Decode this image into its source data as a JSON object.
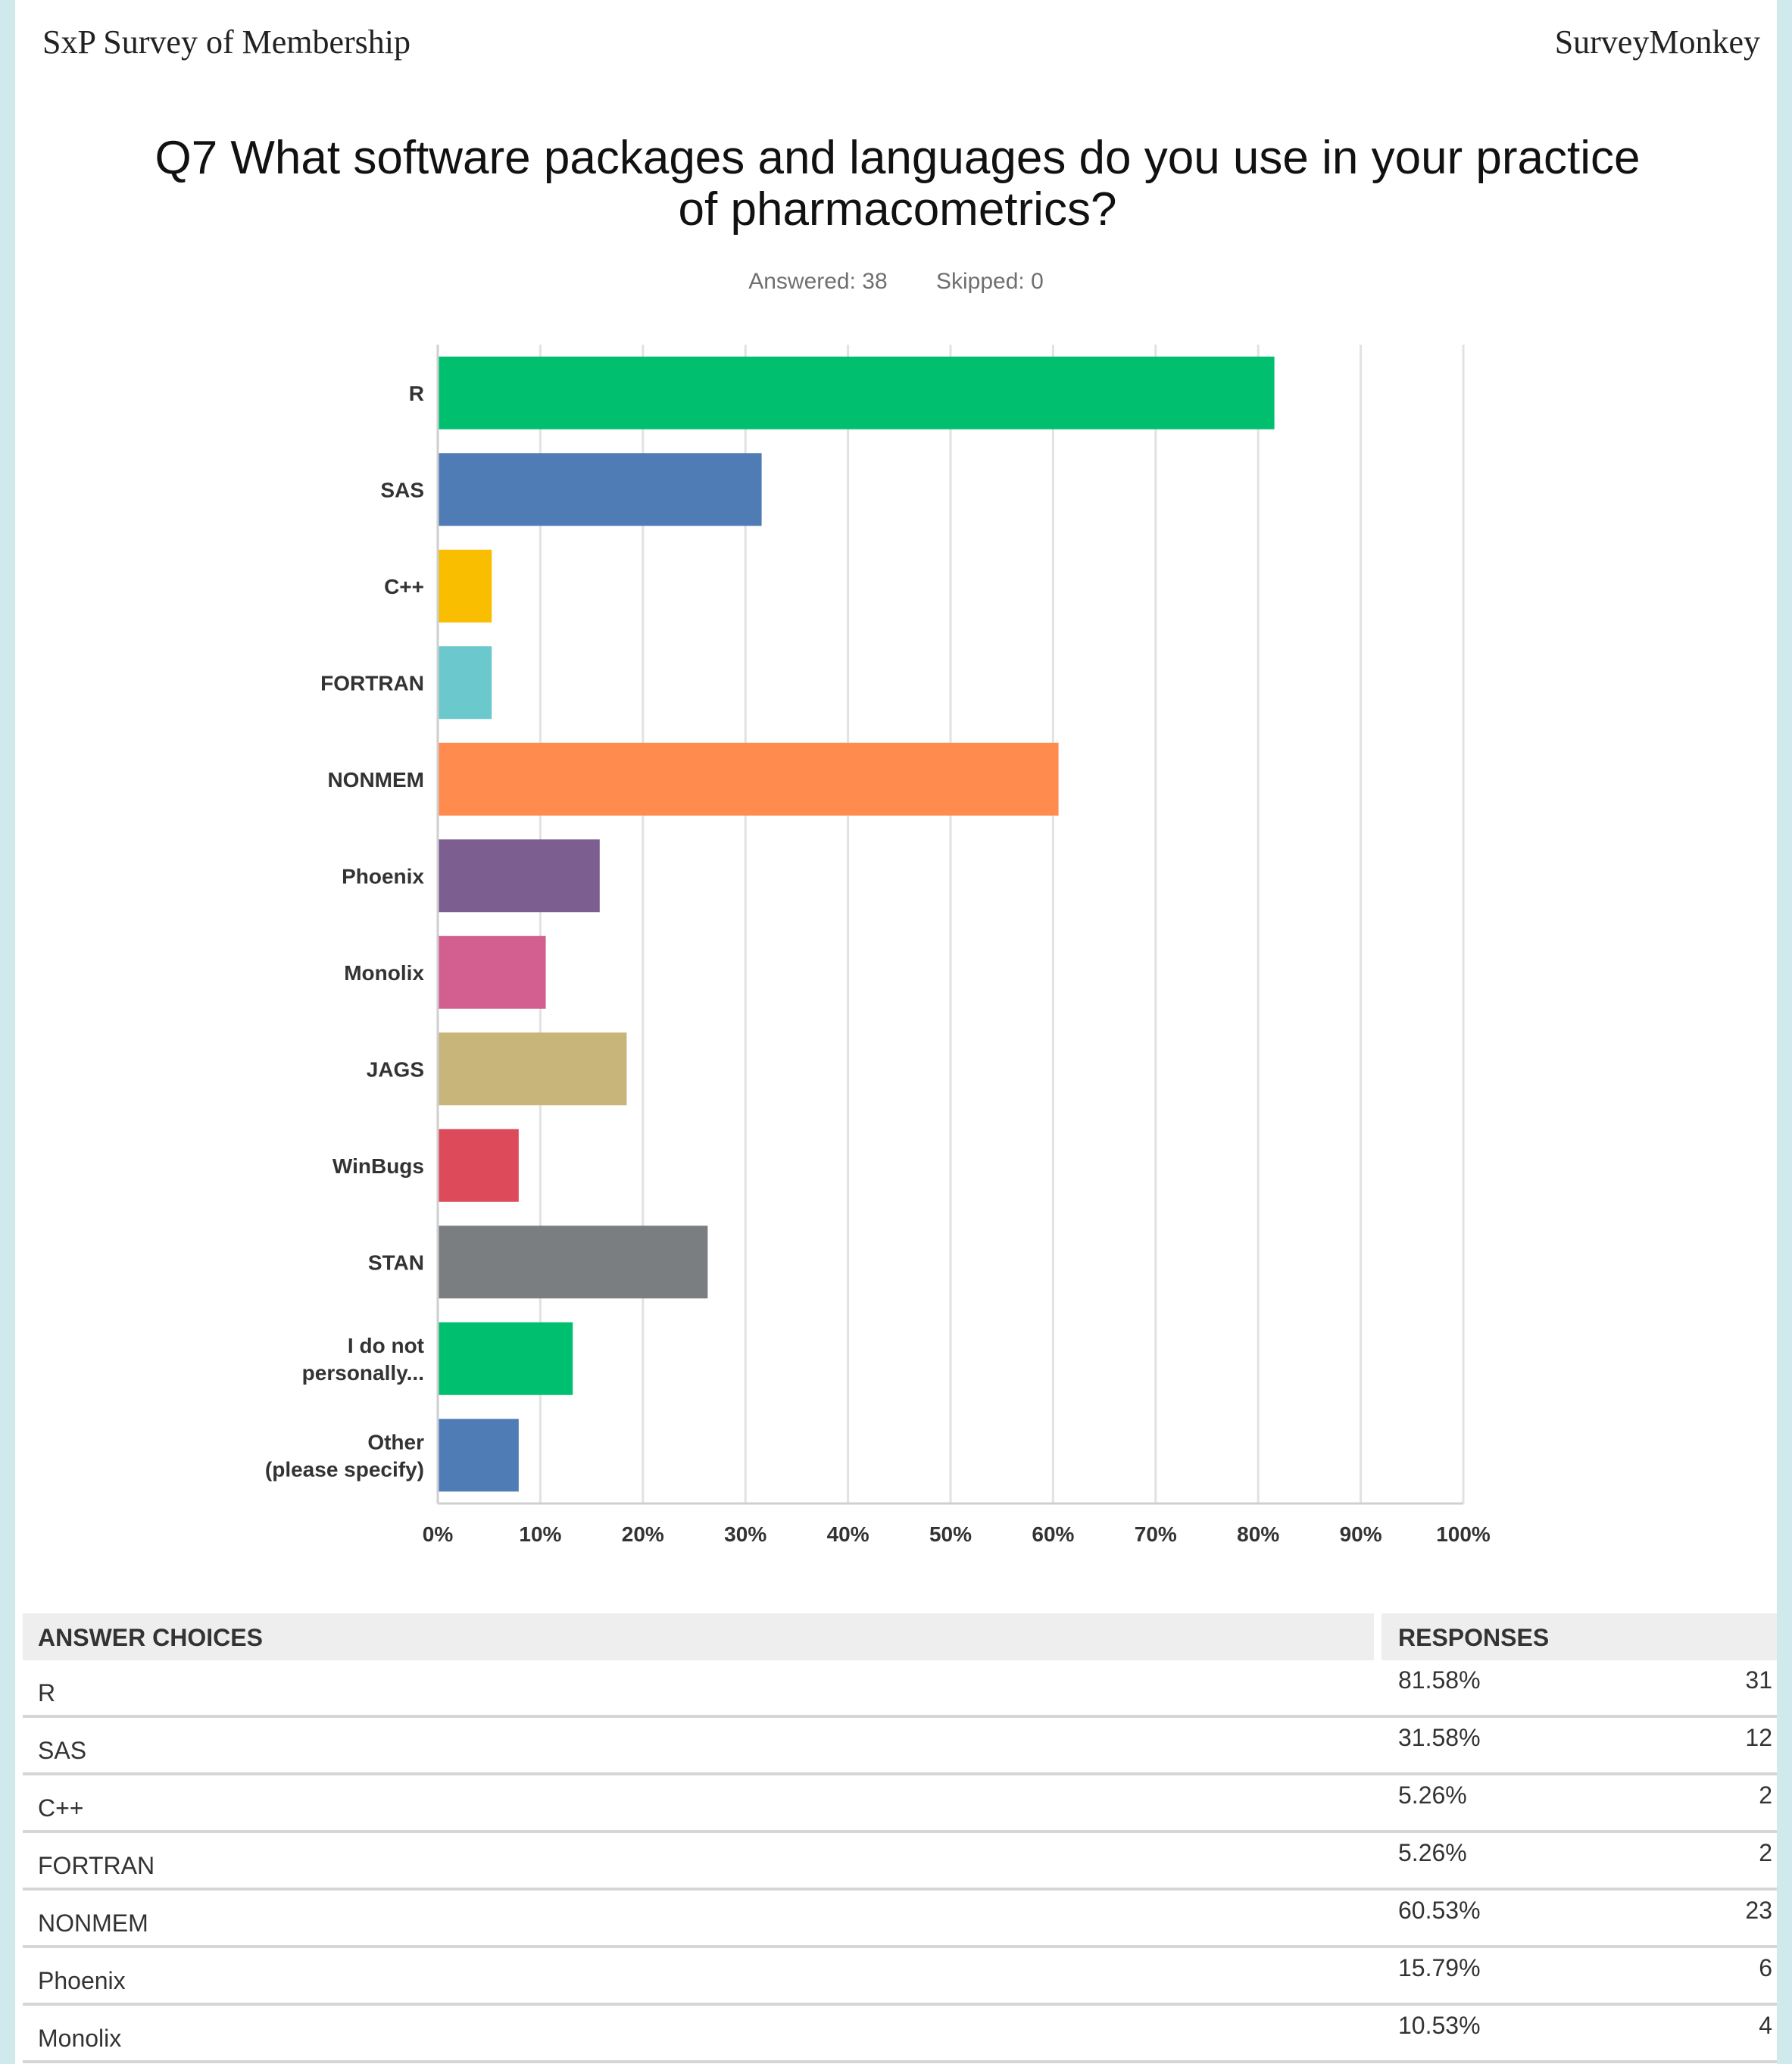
{
  "header": {
    "left_title": "SxP Survey of Membership",
    "right_title": "SurveyMonkey"
  },
  "question": {
    "title_line1": "Q7 What software packages and languages do you use in your practice",
    "title_line2": "of pharmacometrics?",
    "answered": "Answered: 38",
    "skipped": "Skipped: 0"
  },
  "chart_data": {
    "type": "bar",
    "orientation": "horizontal",
    "categories": [
      "R",
      "SAS",
      "C++",
      "FORTRAN",
      "NONMEM",
      "Phoenix",
      "Monolix",
      "JAGS",
      "WinBugs",
      "STAN",
      "I do not personally...",
      "Other (please specify)"
    ],
    "values": [
      81.58,
      31.58,
      5.26,
      5.26,
      60.53,
      15.79,
      10.53,
      18.42,
      7.89,
      26.32,
      13.16,
      7.89
    ],
    "colors": [
      "#00bf6f",
      "#507cb6",
      "#f9be00",
      "#6bc8cd",
      "#ff8b4f",
      "#7d5e90",
      "#d25f90",
      "#c8b579",
      "#dd4a5a",
      "#7a7e81",
      "#00bf6f",
      "#507cb6"
    ],
    "xlim": [
      0,
      100
    ],
    "xticks": [
      "0%",
      "10%",
      "20%",
      "30%",
      "40%",
      "50%",
      "60%",
      "70%",
      "80%",
      "90%",
      "100%"
    ],
    "grid": true
  },
  "table": {
    "header_choices": "ANSWER CHOICES",
    "header_responses": "RESPONSES",
    "rows": [
      {
        "name": "R",
        "pct": "81.58%",
        "count": "31"
      },
      {
        "name": "SAS",
        "pct": "31.58%",
        "count": "12"
      },
      {
        "name": "C++",
        "pct": "5.26%",
        "count": "2"
      },
      {
        "name": "FORTRAN",
        "pct": "5.26%",
        "count": "2"
      },
      {
        "name": "NONMEM",
        "pct": "60.53%",
        "count": "23"
      },
      {
        "name": "Phoenix",
        "pct": "15.79%",
        "count": "6"
      },
      {
        "name": "Monolix",
        "pct": "10.53%",
        "count": "4"
      }
    ]
  }
}
